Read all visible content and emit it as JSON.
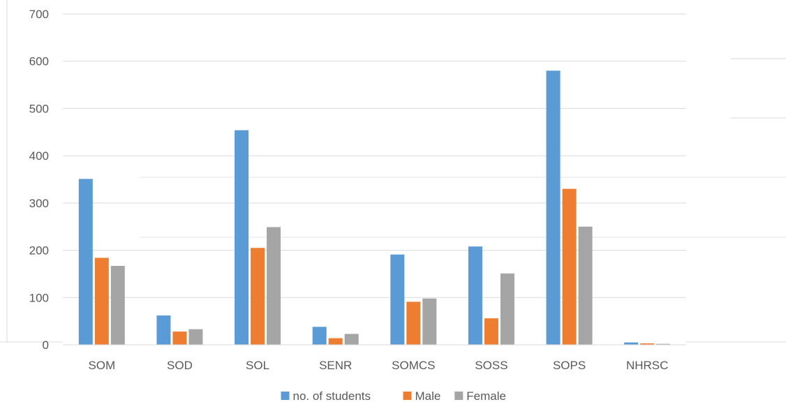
{
  "chart_data": {
    "type": "bar",
    "title": "",
    "xlabel": "",
    "ylabel": "",
    "ylim": [
      0,
      700
    ],
    "yticks": [
      0,
      100,
      200,
      300,
      400,
      500,
      600,
      700
    ],
    "grid": true,
    "legend_position": "bottom",
    "categories": [
      "SOM",
      "SOD",
      "SOL",
      "SENR",
      "SOMCS",
      "SOSS",
      "SOPS",
      "NHRSC"
    ],
    "series": [
      {
        "name": "no. of students",
        "color": "#5b9bd5",
        "values": [
          351,
          62,
          454,
          38,
          191,
          208,
          580,
          5
        ]
      },
      {
        "name": "Male",
        "color": "#ed7d31",
        "values": [
          184,
          28,
          205,
          14,
          91,
          56,
          330,
          3
        ]
      },
      {
        "name": "Female",
        "color": "#a5a5a5",
        "values": [
          167,
          33,
          249,
          23,
          98,
          151,
          250,
          2
        ]
      }
    ]
  }
}
